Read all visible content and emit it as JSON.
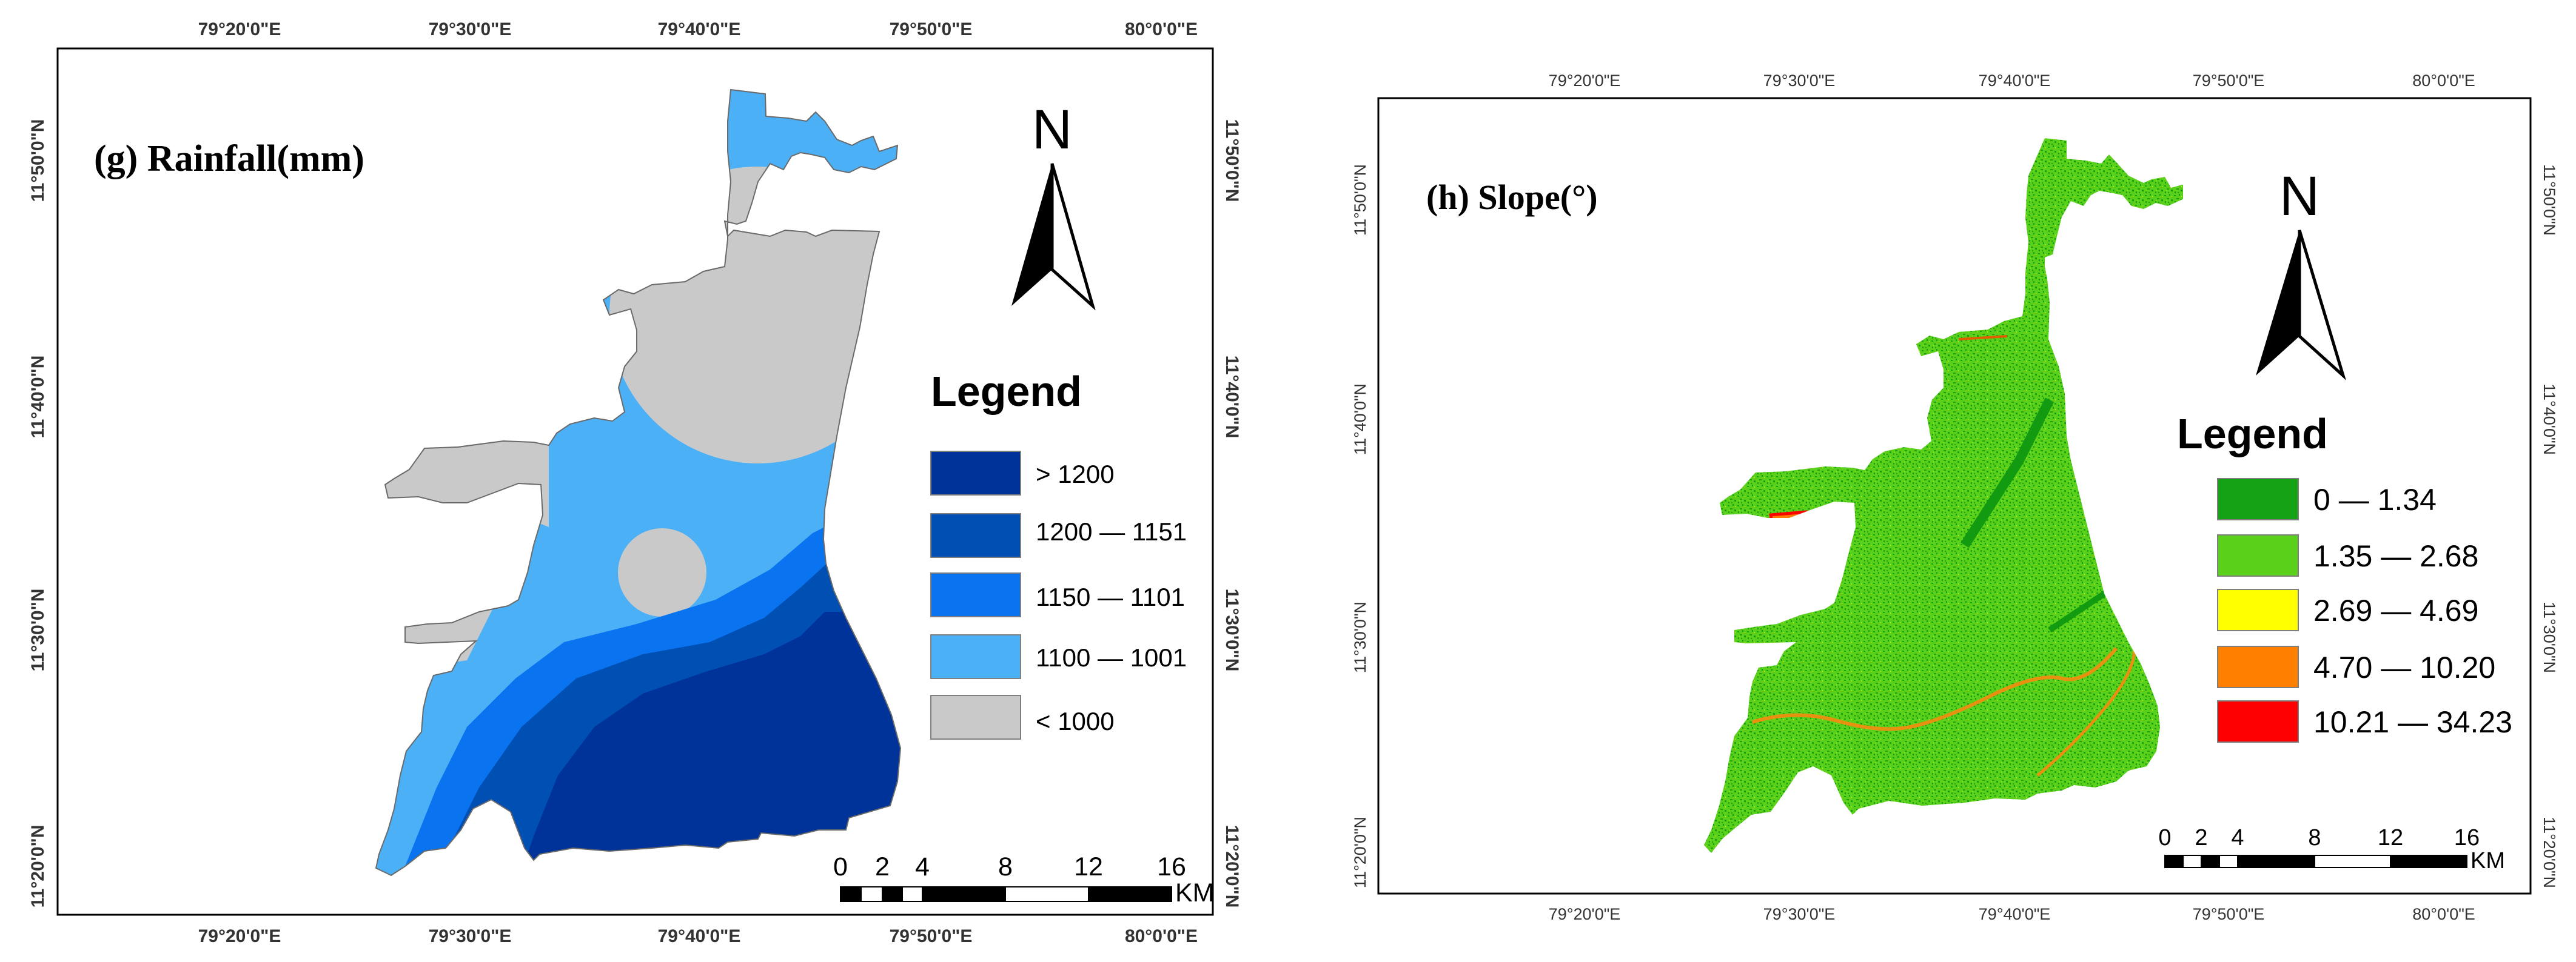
{
  "colors": {
    "gt1200": "#003399",
    "r1200_1151": "#0050b4",
    "r1150_1101": "#0a74f0",
    "r1100_1001": "#4cb0f6",
    "lt1000": "#c9c9c9",
    "s0_134": "#16a313",
    "s135_268": "#5ad01b",
    "s269_469": "#ffff00",
    "s470_1020": "#ff8000",
    "s1021_3423": "#ff0000"
  },
  "map_g": {
    "title": "(g) Rainfall(mm)",
    "north_label": "N",
    "legend_title": "Legend",
    "legend": [
      {
        "label": "> 1200",
        "color": "#003399"
      },
      {
        "label": "1200 — 1151",
        "color": "#0050b4"
      },
      {
        "label": "1150 — 1101",
        "color": "#0a74f0"
      },
      {
        "label": "1100 — 1001",
        "color": "#4cb0f6"
      },
      {
        "label": "< 1000",
        "color": "#c9c9c9"
      }
    ],
    "lon_ticks": [
      "79°20'0\"E",
      "79°30'0\"E",
      "79°40'0\"E",
      "79°50'0\"E",
      "80°0'0\"E"
    ],
    "lat_ticks": [
      "11°50'0\"N",
      "11°40'0\"N",
      "11°30'0\"N",
      "11°20'0\"N"
    ],
    "scale_numbers": [
      "0",
      "2",
      "4",
      "8",
      "12",
      "16"
    ],
    "scale_unit": "KM"
  },
  "map_h": {
    "title": "(h) Slope(°)",
    "north_label": "N",
    "legend_title": "Legend",
    "legend": [
      {
        "label": "0 — 1.34",
        "color": "#16a313"
      },
      {
        "label": "1.35 — 2.68",
        "color": "#5ad01b"
      },
      {
        "label": "2.69 — 4.69",
        "color": "#ffff00"
      },
      {
        "label": "4.70 — 10.20",
        "color": "#ff8000"
      },
      {
        "label": "10.21 — 34.23",
        "color": "#ff0000"
      }
    ],
    "lon_ticks": [
      "79°20'0\"E",
      "79°30'0\"E",
      "79°40'0\"E",
      "79°50'0\"E",
      "80°0'0\"E"
    ],
    "lat_ticks": [
      "11°50'0\"N",
      "11°40'0\"N",
      "11°30'0\"N",
      "11°20'0\"N"
    ],
    "scale_numbers": [
      "0",
      "2",
      "4",
      "8",
      "12",
      "16"
    ],
    "scale_unit": "KM"
  }
}
